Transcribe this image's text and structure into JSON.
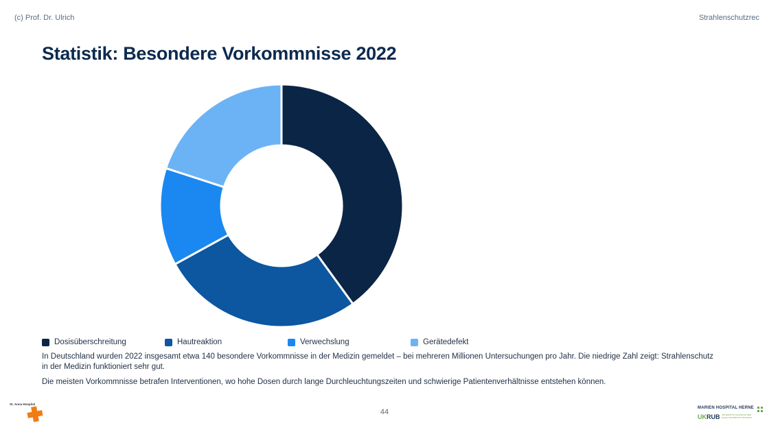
{
  "header": {
    "left": "(c) Prof. Dr. Ulrich",
    "right": "Strahlenschutzrec"
  },
  "title": "Statistik: Besondere Vorkommnisse 2022",
  "chart_data": {
    "type": "pie",
    "variant": "donut",
    "title": "",
    "series": [
      {
        "name": "Dosisüberschreitung",
        "value": 40,
        "color": "#0b2546"
      },
      {
        "name": "Hautreaktion",
        "value": 27,
        "color": "#0d56a0"
      },
      {
        "name": "Verwechslung",
        "value": 13,
        "color": "#1a88f0"
      },
      {
        "name": "Gerätedefekt",
        "value": 20,
        "color": "#6cb3f5"
      }
    ],
    "legend_position": "bottom"
  },
  "body": {
    "p1": "In Deutschland wurden 2022 insgesamt etwa 140 besondere Vorkommnisse in der Medizin gemeldet – bei mehreren Millionen Untersuchungen pro Jahr. Die niedrige Zahl zeigt: Strahlenschutz in der Medizin funktioniert sehr gut.",
    "p2": "Die meisten Vorkommnisse betrafen Interventionen, wo hohe Dosen durch lange Durchleuchtungszeiten und schwierige Patientenverhältnisse entstehen können."
  },
  "footer": {
    "page": "44",
    "logo_left": "St. Anna Hospital",
    "logo_right_line1": "MARIEN HOSPITAL HERNE",
    "logo_right_uk": "UK",
    "logo_right_rub": "RUB",
    "logo_right_small1": "UNIVERSITÄTSKLINIKUM DER",
    "logo_right_small2": "RUHR-UNIVERSITÄT BOCHUM"
  }
}
